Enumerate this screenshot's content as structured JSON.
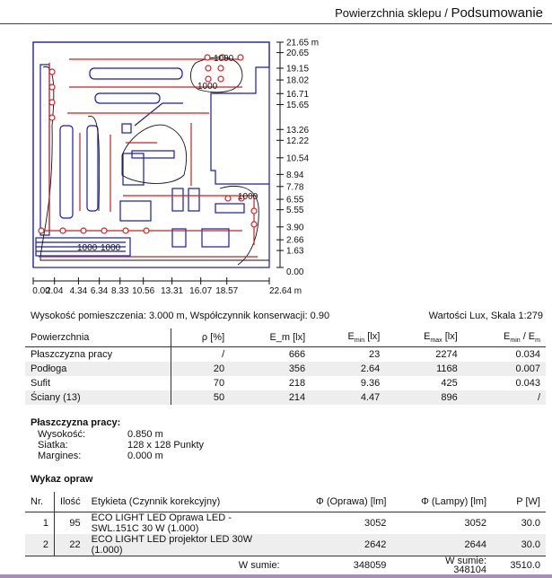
{
  "header": {
    "title_prefix": "Powierzchnia sklepu / ",
    "title_main": "Podsumowanie"
  },
  "plan": {
    "x_ticks": [
      "0.00",
      "2.04",
      "4.34",
      "6.34",
      "8.33",
      "10.56",
      "13.31",
      "16.07",
      "18.57",
      "22.64 m"
    ],
    "y_ticks": [
      "21.65 m",
      "20.65",
      "19.15",
      "18.02",
      "16.71",
      "15.65",
      "13.26",
      "12.22",
      "10.54",
      "8.94",
      "7.78",
      "6.55",
      "5.55",
      "3.90",
      "2.66",
      "1.63",
      "0.00"
    ],
    "isolines": [
      "1000",
      "1000",
      "1000",
      "1000",
      "1000"
    ],
    "colors": {
      "walls": "#1a1aa0",
      "luminaires": "#cc2222",
      "isolines": "#111111"
    }
  },
  "info": {
    "left": "Wysokość pomieszczenia: 3.000 m, Współczynnik konserwacji: 0.90",
    "right": "Wartości Lux, Skala 1:279"
  },
  "surfaces": {
    "headers": [
      "Powierzchnia",
      "ρ [%]",
      "E_m [lx]",
      "E_min [lx]",
      "E_max [lx]",
      "E_min / E_m"
    ],
    "rows": [
      [
        "Płaszczyzna pracy",
        "/",
        "666",
        "23",
        "2274",
        "0.034"
      ],
      [
        "Podłoga",
        "20",
        "356",
        "2.64",
        "1168",
        "0.007"
      ],
      [
        "Sufit",
        "70",
        "218",
        "9.36",
        "425",
        "0.043"
      ],
      [
        "Ściany (13)",
        "50",
        "214",
        "4.47",
        "896",
        "/"
      ]
    ]
  },
  "workplane": {
    "title": "Płaszczyzna pracy:",
    "rows": [
      [
        "Wysokość:",
        "0.850 m"
      ],
      [
        "Siatka:",
        "128 x 128 Punkty"
      ],
      [
        "Margines:",
        "0.000 m"
      ]
    ]
  },
  "luminaires": {
    "title": "Wykaz opraw",
    "headers": [
      "Nr.",
      "Ilość",
      "Etykieta (Czynnik korekcyjny)",
      "Φ (Oprawa) [lm]",
      "Φ (Lampy) [lm]",
      "P [W]"
    ],
    "rows": [
      [
        "1",
        "95",
        "ECO LIGHT LED Oprawa LED - SWL.151C 30 W (1.000)",
        "3052",
        "3052",
        "30.0"
      ],
      [
        "2",
        "22",
        "ECO LIGHT LED projektor LED 30W (1.000)",
        "2642",
        "2644",
        "30.0"
      ]
    ],
    "total_label": "W sumie:",
    "total_oprawa": "348059",
    "total_lampy": "348104",
    "total_power": "3510.0"
  }
}
